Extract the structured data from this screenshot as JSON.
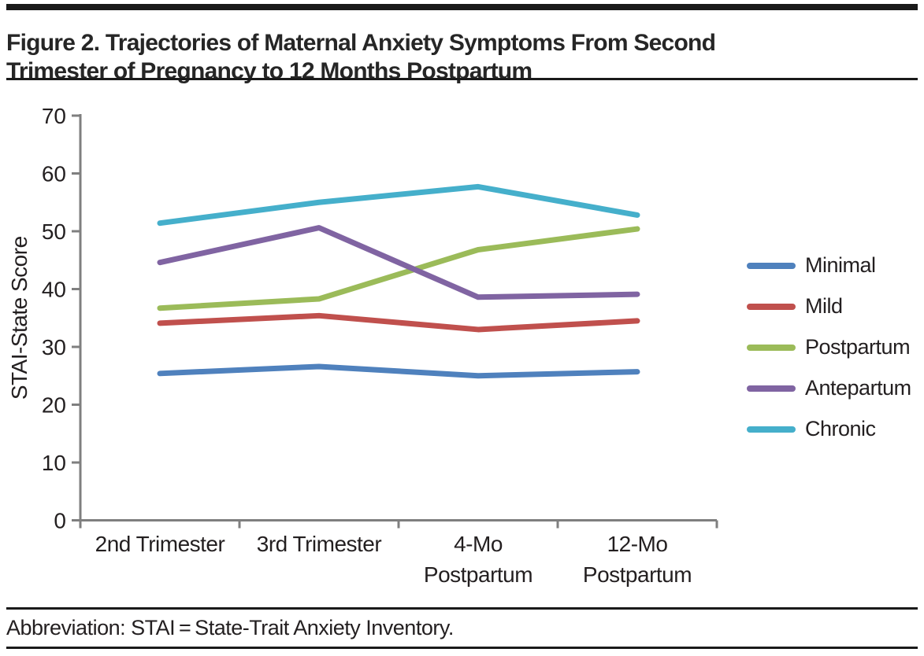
{
  "header": {
    "title_line1": "Figure 2. Trajectories of Maternal Anxiety Symptoms From Second",
    "title_line2": "Trimester of Pregnancy to 12 Months Postpartum"
  },
  "footer": {
    "text": "Abbreviation: STAI = State-Trait Anxiety Inventory."
  },
  "chart_data": {
    "type": "line",
    "title": "Trajectories of Maternal Anxiety Symptoms From Second Trimester of Pregnancy to 12 Months Postpartum",
    "xlabel": "",
    "ylabel": "STAI-State Score",
    "ylim": [
      0,
      70
    ],
    "ytick_step": 10,
    "yticks": [
      0,
      10,
      20,
      30,
      40,
      50,
      60,
      70
    ],
    "grid": false,
    "legend_position": "right",
    "categories": [
      "2nd Trimester",
      "3rd Trimester",
      "4-Mo Postpartum",
      "12-Mo Postpartum"
    ],
    "category_label_lines": [
      [
        "2nd Trimester"
      ],
      [
        "3rd Trimester"
      ],
      [
        "4-Mo",
        "Postpartum"
      ],
      [
        "12-Mo",
        "Postpartum"
      ]
    ],
    "series": [
      {
        "name": "Minimal",
        "color": "#4F81BD",
        "values": [
          25.4,
          26.6,
          25.0,
          25.7
        ]
      },
      {
        "name": "Mild",
        "color": "#C0504D",
        "values": [
          34.1,
          35.4,
          33.0,
          34.5
        ]
      },
      {
        "name": "Postpartum",
        "color": "#9BBB59",
        "values": [
          36.7,
          38.3,
          46.8,
          50.4
        ]
      },
      {
        "name": "Antepartum",
        "color": "#8064A2",
        "values": [
          44.6,
          50.6,
          38.6,
          39.1
        ]
      },
      {
        "name": "Chronic",
        "color": "#45AFCB",
        "values": [
          51.4,
          55.0,
          57.7,
          52.8
        ]
      }
    ],
    "colors": {
      "axis": "#7F7F7F",
      "text": "#231F20",
      "rule": "#1A1A1A"
    }
  }
}
